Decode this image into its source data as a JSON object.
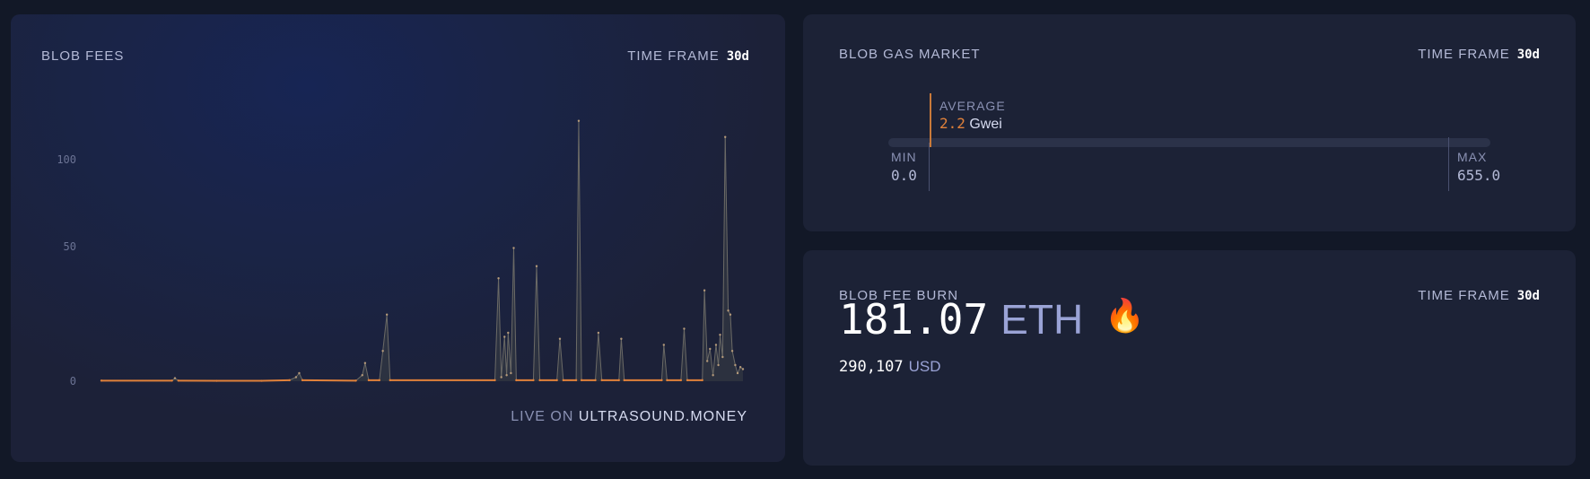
{
  "blob_fees": {
    "title": "BLOB FEES",
    "time_frame_label": "TIME FRAME",
    "time_frame_value": "30d",
    "live_on": "LIVE ON",
    "live_site": "ULTRASOUND.MONEY"
  },
  "chart_data": {
    "type": "area",
    "title": "",
    "xlabel": "",
    "ylabel": "",
    "x_range_days": [
      0,
      30
    ],
    "ylim": [
      0,
      130
    ],
    "yticks": [
      "0",
      "50",
      "100"
    ],
    "grid": false,
    "colors": {
      "line_low": "#e0813a",
      "fill": "#3a4046",
      "points": "#b59a7a"
    },
    "points": [
      [
        0,
        0.3
      ],
      [
        3.3,
        0.3
      ],
      [
        3.44,
        1.5
      ],
      [
        3.6,
        0.3
      ],
      [
        5.4,
        0.2
      ],
      [
        7.5,
        0.2
      ],
      [
        8.8,
        0.5
      ],
      [
        9.1,
        2
      ],
      [
        9.25,
        4
      ],
      [
        9.4,
        0.5
      ],
      [
        11.9,
        0.3
      ],
      [
        12.2,
        3
      ],
      [
        12.33,
        9
      ],
      [
        12.5,
        0.5
      ],
      [
        13.0,
        0.5
      ],
      [
        13.16,
        15
      ],
      [
        13.35,
        33
      ],
      [
        13.5,
        0.5
      ],
      [
        18.4,
        0.5
      ],
      [
        18.57,
        51
      ],
      [
        18.7,
        2
      ],
      [
        18.85,
        22
      ],
      [
        18.95,
        3
      ],
      [
        19.02,
        24
      ],
      [
        19.15,
        4
      ],
      [
        19.28,
        66
      ],
      [
        19.4,
        0.5
      ],
      [
        20.2,
        0.5
      ],
      [
        20.35,
        57
      ],
      [
        20.5,
        0.5
      ],
      [
        21.3,
        0.5
      ],
      [
        21.44,
        21
      ],
      [
        21.6,
        0.5
      ],
      [
        22.2,
        0.5
      ],
      [
        22.32,
        129
      ],
      [
        22.45,
        0.5
      ],
      [
        23.1,
        0.5
      ],
      [
        23.24,
        24
      ],
      [
        23.4,
        0.5
      ],
      [
        24.2,
        0.5
      ],
      [
        24.31,
        21
      ],
      [
        24.45,
        0.5
      ],
      [
        26.2,
        0.5
      ],
      [
        26.3,
        18
      ],
      [
        26.45,
        0.5
      ],
      [
        27.1,
        0.5
      ],
      [
        27.25,
        26
      ],
      [
        27.4,
        0.5
      ],
      [
        28.1,
        0.5
      ],
      [
        28.2,
        45
      ],
      [
        28.33,
        10
      ],
      [
        28.46,
        16
      ],
      [
        28.6,
        3
      ],
      [
        28.74,
        18
      ],
      [
        28.85,
        8
      ],
      [
        28.93,
        23
      ],
      [
        29.05,
        12
      ],
      [
        29.17,
        121
      ],
      [
        29.31,
        35
      ],
      [
        29.41,
        33
      ],
      [
        29.5,
        15
      ],
      [
        29.64,
        8
      ],
      [
        29.75,
        4
      ],
      [
        29.88,
        7
      ],
      [
        30,
        6
      ]
    ]
  },
  "blob_gas_market": {
    "title": "BLOB GAS MARKET",
    "time_frame_label": "TIME FRAME",
    "time_frame_value": "30d",
    "average_label": "AVERAGE",
    "average_value": "2.2",
    "average_unit": "Gwei",
    "min_label": "MIN",
    "min_value": "0.0",
    "max_label": "MAX",
    "max_value": "655.0",
    "accent_color": "#e0813a"
  },
  "blob_fee_burn": {
    "title": "BLOB FEE BURN",
    "time_frame_label": "TIME FRAME",
    "time_frame_value": "30d",
    "amount": "181.07",
    "unit": "ETH",
    "icon": "fire-icon",
    "usd_amount": "290,107",
    "usd_unit": "USD"
  }
}
